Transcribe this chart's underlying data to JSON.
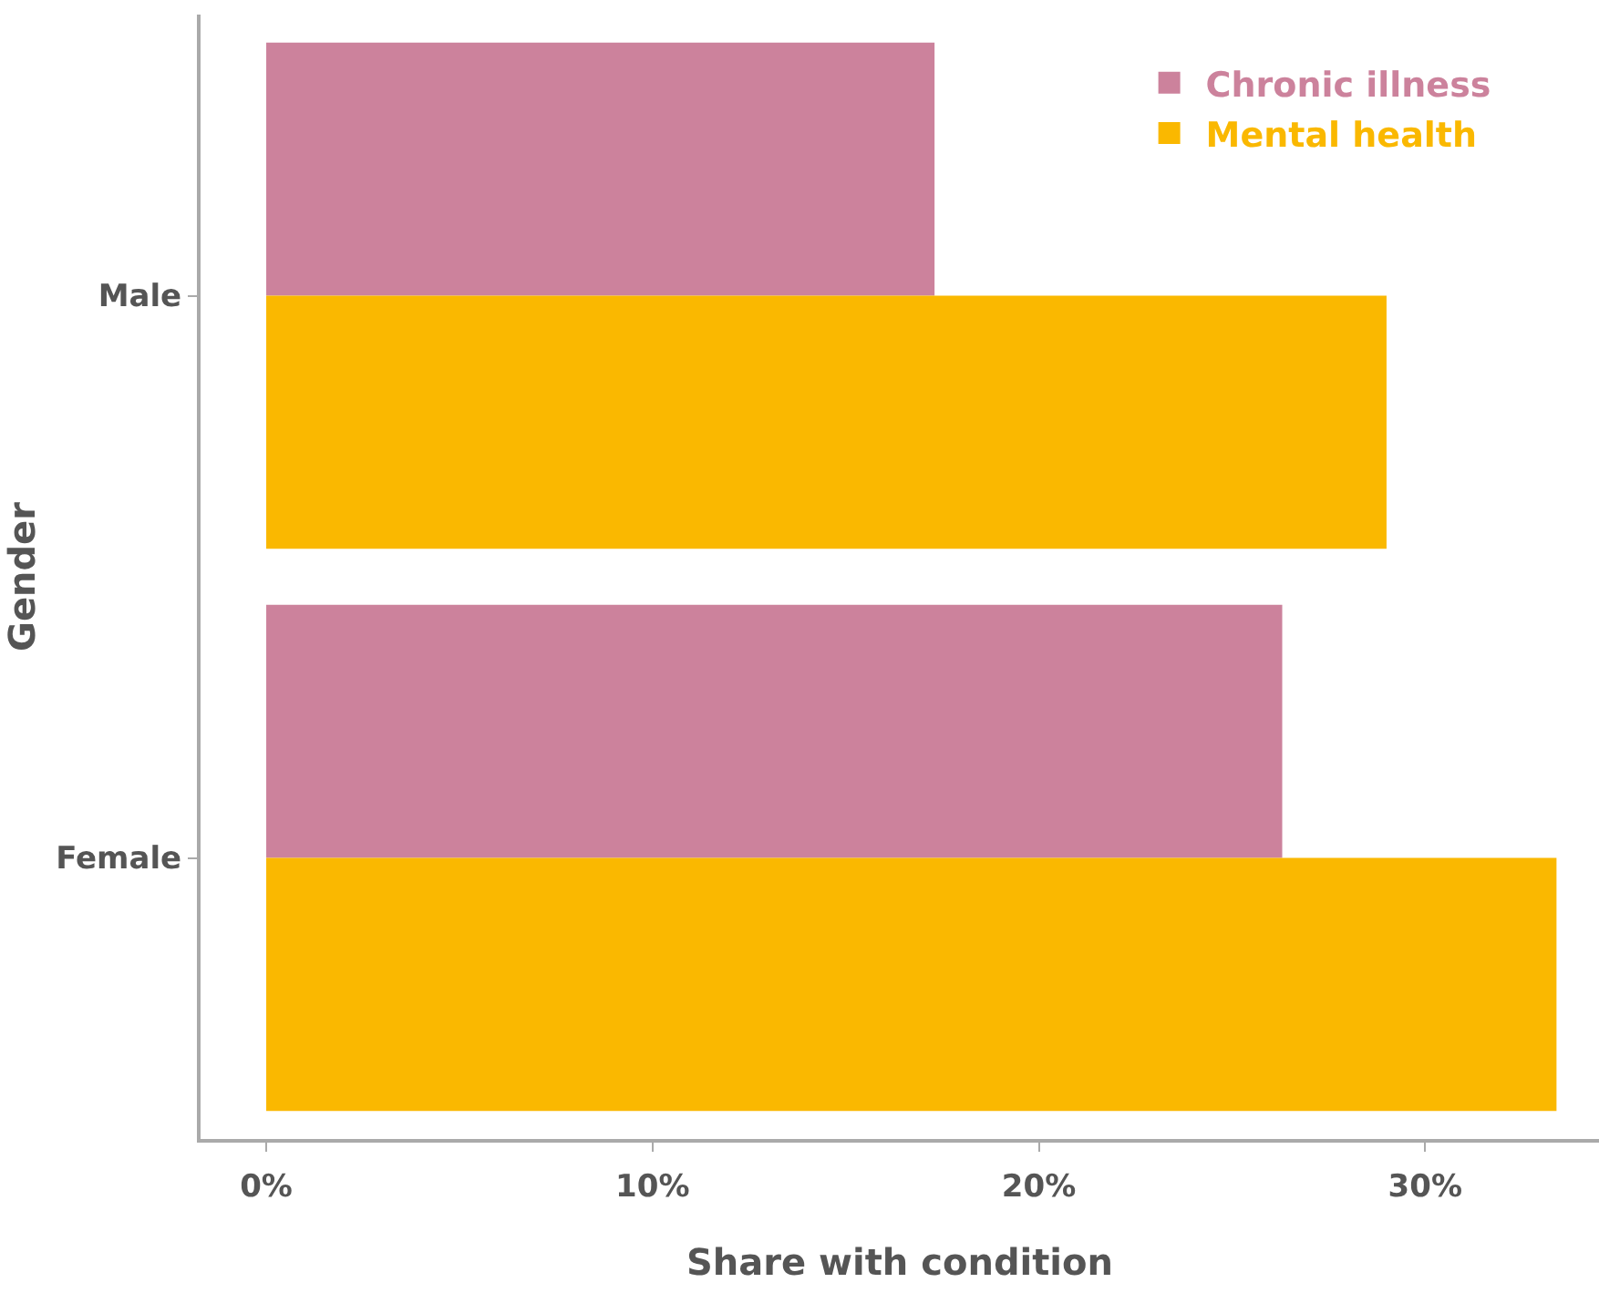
{
  "chart_data": {
    "type": "bar",
    "orientation": "horizontal",
    "xlabel": "Share with condition",
    "ylabel": "Gender",
    "categories": [
      "Male",
      "Female"
    ],
    "series": [
      {
        "name": "Chronic illness",
        "color": "#cc829c",
        "values": [
          17.3,
          26.3
        ]
      },
      {
        "name": "Mental health",
        "color": "#fab800",
        "values": [
          29.0,
          33.4
        ]
      }
    ],
    "xlim": [
      -1.7,
      34.5
    ],
    "xticks": [
      {
        "value": 0,
        "label": "0%"
      },
      {
        "value": 10,
        "label": "10%"
      },
      {
        "value": 20,
        "label": "20%"
      },
      {
        "value": 30,
        "label": "30%"
      }
    ],
    "legend": "top right"
  }
}
